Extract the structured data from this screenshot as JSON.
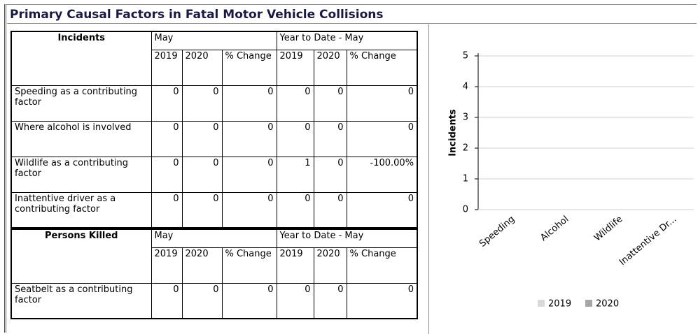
{
  "header": {
    "title": "Primary Causal Factors in Fatal Motor Vehicle Collisions"
  },
  "table": {
    "sections": [
      {
        "label": "Incidents",
        "periods": [
          "May",
          "Year to Date - May"
        ],
        "columns": [
          "2019",
          "2020",
          "% Change",
          "2019",
          "2020",
          "% Change"
        ],
        "rows": [
          {
            "label": "Speeding as a contributing factor",
            "values": [
              0,
              0,
              0,
              0,
              0,
              0
            ]
          },
          {
            "label": "Where alcohol is involved",
            "values": [
              0,
              0,
              0,
              0,
              0,
              0
            ]
          },
          {
            "label": "Wildlife as a contributing factor",
            "values": [
              0,
              0,
              0,
              1,
              0,
              "-100.00%"
            ]
          },
          {
            "label": "Inattentive driver as a contributing factor",
            "values": [
              0,
              0,
              0,
              0,
              0,
              0
            ]
          }
        ]
      },
      {
        "label": "Persons Killed",
        "periods": [
          "May",
          "Year to Date - May"
        ],
        "columns": [
          "2019",
          "2020",
          "% Change",
          "2019",
          "2020",
          "% Change"
        ],
        "rows": [
          {
            "label": "Seatbelt as a contributing factor",
            "values": [
              0,
              0,
              0,
              0,
              0,
              0
            ]
          }
        ]
      }
    ]
  },
  "chart_data": {
    "type": "bar",
    "y_label": "Incidents",
    "categories": [
      "Speeding",
      "Alcohol",
      "Wildlife",
      "Inattentive Dr..."
    ],
    "series": [
      {
        "name": "2019",
        "color": "#d9d9d9",
        "values": [
          0,
          0,
          0,
          0
        ]
      },
      {
        "name": "2020",
        "color": "#a6a6a6",
        "values": [
          0,
          0,
          0,
          0
        ]
      }
    ],
    "ylim": [
      0,
      5
    ],
    "yticks": [
      0,
      1,
      2,
      3,
      4,
      5
    ],
    "grid": true,
    "legend": "bottom"
  }
}
